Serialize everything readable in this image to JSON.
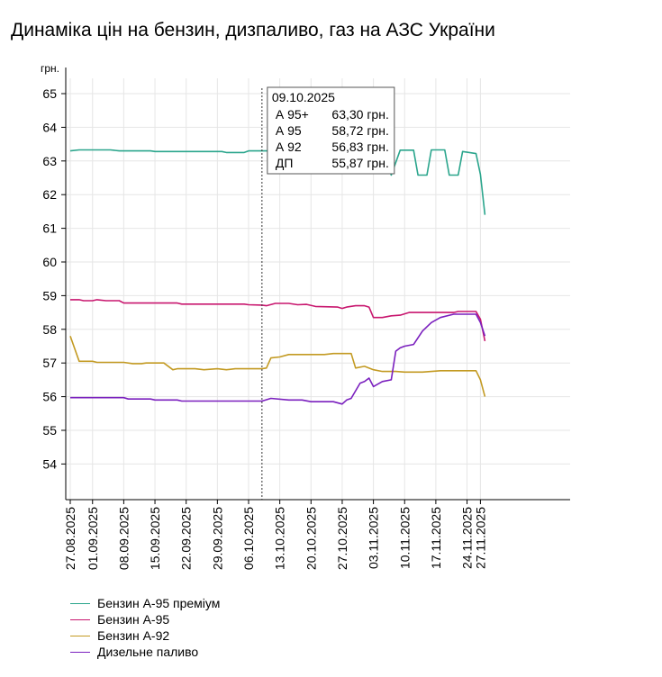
{
  "title": "Динаміка цін на бензин, дизпаливо, газ на АЗС України",
  "chart_data": {
    "type": "line",
    "title": "Динаміка цін на бензин, дизпаливо, газ на АЗС України",
    "ylabel": "грн.",
    "xlabel": "",
    "ylim": [
      53,
      65
    ],
    "xlim": [
      "2025-08-27",
      "2025-11-27"
    ],
    "yticks": [
      "54",
      "55",
      "56",
      "57",
      "58",
      "59",
      "60",
      "61",
      "62",
      "63",
      "64",
      "65"
    ],
    "xticks": [
      "27.08.2025",
      "01.09.2025",
      "08.09.2025",
      "15.09.2025",
      "22.09.2025",
      "29.09.2025",
      "06.10.2025",
      "13.10.2025",
      "20.10.2025",
      "27.10.2025",
      "03.11.2025",
      "10.11.2025",
      "17.11.2025",
      "24.11.2025",
      "27.11.2025"
    ],
    "grid": true,
    "legend_position": "bottom-left",
    "crosshair_date": "2025-10-09",
    "tooltip": {
      "title": "09.10.2025",
      "rows": [
        {
          "label": "А 95+",
          "value": "63,30 грн."
        },
        {
          "label": "А 95",
          "value": "58,72 грн."
        },
        {
          "label": "А 92",
          "value": "56,83 грн."
        },
        {
          "label": "ДП",
          "value": "55,87 грн."
        }
      ]
    },
    "series": [
      {
        "name": "Бензин А-95 преміум",
        "color": "#2aa58c",
        "points": [
          [
            "2025-08-27",
            63.3
          ],
          [
            "2025-08-29",
            63.33
          ],
          [
            "2025-09-02",
            63.33
          ],
          [
            "2025-09-05",
            63.33
          ],
          [
            "2025-09-07",
            63.3
          ],
          [
            "2025-09-14",
            63.3
          ],
          [
            "2025-09-15",
            63.28
          ],
          [
            "2025-09-17",
            63.28
          ],
          [
            "2025-09-30",
            63.28
          ],
          [
            "2025-10-01",
            63.25
          ],
          [
            "2025-10-05",
            63.25
          ],
          [
            "2025-10-06",
            63.3
          ],
          [
            "2025-10-11",
            63.3
          ],
          [
            "2025-10-19",
            63.3
          ],
          [
            "2025-10-24",
            63.3
          ],
          [
            "2025-10-29",
            63.3
          ],
          [
            "2025-10-30",
            63.1
          ],
          [
            "2025-10-31",
            62.65
          ],
          [
            "2025-11-01",
            62.65
          ],
          [
            "2025-11-02",
            63.32
          ],
          [
            "2025-11-05",
            63.32
          ],
          [
            "2025-11-07",
            62.58
          ],
          [
            "2025-11-09",
            63.32
          ],
          [
            "2025-11-12",
            63.32
          ],
          [
            "2025-11-13",
            62.58
          ],
          [
            "2025-11-15",
            62.58
          ],
          [
            "2025-11-16",
            63.33
          ],
          [
            "2025-11-19",
            63.33
          ],
          [
            "2025-11-20",
            62.58
          ],
          [
            "2025-11-22",
            62.58
          ],
          [
            "2025-11-23",
            63.28
          ],
          [
            "2025-11-26",
            63.22
          ],
          [
            "2025-11-27",
            62.6
          ],
          [
            "2025-11-28",
            61.4
          ]
        ]
      },
      {
        "name": "Бензин А-95",
        "color": "#c8166e",
        "points": [
          [
            "2025-08-27",
            58.88
          ],
          [
            "2025-08-29",
            58.88
          ],
          [
            "2025-08-30",
            58.85
          ],
          [
            "2025-09-01",
            58.85
          ],
          [
            "2025-09-02",
            58.88
          ],
          [
            "2025-09-04",
            58.85
          ],
          [
            "2025-09-07",
            58.85
          ],
          [
            "2025-09-08",
            58.78
          ],
          [
            "2025-09-20",
            58.78
          ],
          [
            "2025-09-21",
            58.75
          ],
          [
            "2025-10-05",
            58.75
          ],
          [
            "2025-10-06",
            58.73
          ],
          [
            "2025-10-09",
            58.72
          ],
          [
            "2025-10-10",
            58.7
          ],
          [
            "2025-10-12",
            58.77
          ],
          [
            "2025-10-15",
            58.77
          ],
          [
            "2025-10-17",
            58.73
          ],
          [
            "2025-10-19",
            58.74
          ],
          [
            "2025-10-21",
            58.68
          ],
          [
            "2025-10-26",
            58.66
          ],
          [
            "2025-10-27",
            58.62
          ],
          [
            "2025-10-28",
            58.66
          ],
          [
            "2025-10-30",
            58.7
          ],
          [
            "2025-11-01",
            58.7
          ],
          [
            "2025-11-02",
            58.66
          ],
          [
            "2025-11-03",
            58.35
          ],
          [
            "2025-11-05",
            58.35
          ],
          [
            "2025-11-07",
            58.4
          ],
          [
            "2025-11-09",
            58.42
          ],
          [
            "2025-11-11",
            58.5
          ],
          [
            "2025-11-21",
            58.5
          ],
          [
            "2025-11-22",
            58.53
          ],
          [
            "2025-11-26",
            58.53
          ],
          [
            "2025-11-27",
            58.3
          ],
          [
            "2025-11-28",
            57.65
          ]
        ]
      },
      {
        "name": "Бензин А-92",
        "color": "#c39a22",
        "points": [
          [
            "2025-08-27",
            57.8
          ],
          [
            "2025-08-29",
            57.05
          ],
          [
            "2025-09-01",
            57.05
          ],
          [
            "2025-09-02",
            57.02
          ],
          [
            "2025-09-08",
            57.02
          ],
          [
            "2025-09-10",
            56.98
          ],
          [
            "2025-09-12",
            56.98
          ],
          [
            "2025-09-13",
            57.0
          ],
          [
            "2025-09-17",
            57.0
          ],
          [
            "2025-09-19",
            56.8
          ],
          [
            "2025-09-20",
            56.83
          ],
          [
            "2025-09-24",
            56.83
          ],
          [
            "2025-09-26",
            56.8
          ],
          [
            "2025-09-29",
            56.83
          ],
          [
            "2025-10-01",
            56.8
          ],
          [
            "2025-10-03",
            56.83
          ],
          [
            "2025-10-07",
            56.83
          ],
          [
            "2025-10-09",
            56.83
          ],
          [
            "2025-10-10",
            56.85
          ],
          [
            "2025-10-11",
            57.15
          ],
          [
            "2025-10-13",
            57.18
          ],
          [
            "2025-10-15",
            57.25
          ],
          [
            "2025-10-18",
            57.25
          ],
          [
            "2025-10-23",
            57.25
          ],
          [
            "2025-10-25",
            57.28
          ],
          [
            "2025-10-29",
            57.28
          ],
          [
            "2025-10-30",
            56.85
          ],
          [
            "2025-11-01",
            56.9
          ],
          [
            "2025-11-03",
            56.8
          ],
          [
            "2025-11-05",
            56.75
          ],
          [
            "2025-11-08",
            56.75
          ],
          [
            "2025-11-10",
            56.73
          ],
          [
            "2025-11-14",
            56.73
          ],
          [
            "2025-11-18",
            56.77
          ],
          [
            "2025-11-26",
            56.77
          ],
          [
            "2025-11-27",
            56.5
          ],
          [
            "2025-11-28",
            56.0
          ]
        ]
      },
      {
        "name": "Дизельне паливо",
        "color": "#7a1fbe",
        "points": [
          [
            "2025-08-27",
            55.97
          ],
          [
            "2025-09-08",
            55.97
          ],
          [
            "2025-09-09",
            55.93
          ],
          [
            "2025-09-14",
            55.93
          ],
          [
            "2025-09-15",
            55.9
          ],
          [
            "2025-09-20",
            55.9
          ],
          [
            "2025-09-21",
            55.87
          ],
          [
            "2025-10-09",
            55.87
          ],
          [
            "2025-10-11",
            55.95
          ],
          [
            "2025-10-15",
            55.9
          ],
          [
            "2025-10-18",
            55.9
          ],
          [
            "2025-10-20",
            55.85
          ],
          [
            "2025-10-25",
            55.85
          ],
          [
            "2025-10-27",
            55.78
          ],
          [
            "2025-10-28",
            55.9
          ],
          [
            "2025-10-29",
            55.95
          ],
          [
            "2025-10-31",
            56.4
          ],
          [
            "2025-11-01",
            56.45
          ],
          [
            "2025-11-02",
            56.55
          ],
          [
            "2025-11-03",
            56.3
          ],
          [
            "2025-11-05",
            56.45
          ],
          [
            "2025-11-07",
            56.5
          ],
          [
            "2025-11-08",
            57.35
          ],
          [
            "2025-11-09",
            57.45
          ],
          [
            "2025-11-10",
            57.5
          ],
          [
            "2025-11-12",
            57.55
          ],
          [
            "2025-11-14",
            57.95
          ],
          [
            "2025-11-16",
            58.2
          ],
          [
            "2025-11-18",
            58.35
          ],
          [
            "2025-11-21",
            58.45
          ],
          [
            "2025-11-22",
            58.45
          ],
          [
            "2025-11-26",
            58.45
          ],
          [
            "2025-11-27",
            58.2
          ],
          [
            "2025-11-28",
            57.8
          ]
        ]
      }
    ]
  }
}
